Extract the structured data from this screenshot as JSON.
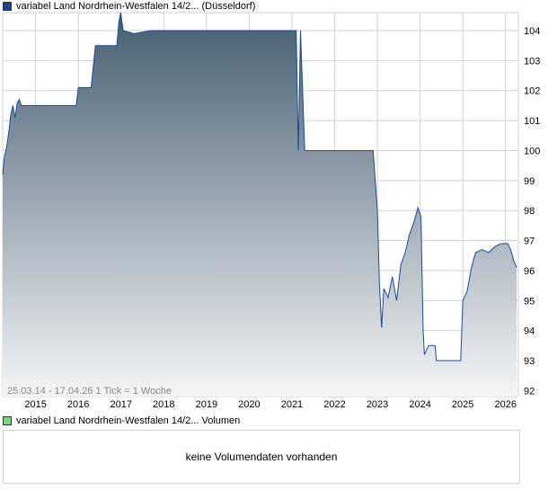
{
  "legend": {
    "price_label": "variabel Land Nordrhein-Westfalen 14/2... (Düsseldorf)",
    "volume_label": "variabel Land Nordrhein-Westfalen 14/2... Volumen"
  },
  "colors": {
    "price_swatch": "#1c3f8f",
    "volume_swatch": "#7fd67f",
    "line": "#1a4aa0",
    "fill_top": "#465e70",
    "fill_bottom": "#f4f5f7",
    "grid": "#d2d2d2"
  },
  "chart_info": {
    "range": "25.03.14 - 17.04.26",
    "tick": "1 Tick = 1 Woche"
  },
  "volume": {
    "empty_text": "keine Volumendaten vorhanden"
  },
  "chart_data": {
    "type": "area",
    "title": "",
    "xlabel": "",
    "ylabel": "",
    "ylim": [
      91.8,
      104.6
    ],
    "xlim": [
      2014.23,
      2026.3
    ],
    "x_ticks": [
      "2015",
      "2016",
      "2017",
      "2018",
      "2019",
      "2020",
      "2021",
      "2022",
      "2023",
      "2024",
      "2025",
      "2026"
    ],
    "y_ticks": [
      "92",
      "93",
      "94",
      "95",
      "96",
      "97",
      "98",
      "99",
      "100",
      "101",
      "102",
      "103",
      "104"
    ],
    "grid": true,
    "y_axis_side": "right",
    "legend_position": "top-left",
    "series": [
      {
        "values": [
          [
            2014.23,
            99.2
          ],
          [
            2014.27,
            99.8
          ],
          [
            2014.32,
            100.1
          ],
          [
            2014.37,
            100.6
          ],
          [
            2014.42,
            101.2
          ],
          [
            2014.47,
            101.5
          ],
          [
            2014.52,
            101.1
          ],
          [
            2014.57,
            101.6
          ],
          [
            2014.62,
            101.7
          ],
          [
            2014.67,
            101.5
          ],
          [
            2014.9,
            101.5
          ],
          [
            2015.1,
            101.5
          ],
          [
            2015.2,
            101.5
          ],
          [
            2015.6,
            101.5
          ],
          [
            2015.95,
            101.5
          ],
          [
            2016.0,
            102.1
          ],
          [
            2016.3,
            102.1
          ],
          [
            2016.4,
            103.5
          ],
          [
            2016.9,
            103.5
          ],
          [
            2016.95,
            104.3
          ],
          [
            2016.99,
            104.8
          ],
          [
            2017.05,
            104.0
          ],
          [
            2017.3,
            103.9
          ],
          [
            2017.7,
            104.0
          ],
          [
            2018.5,
            104.0
          ],
          [
            2019.5,
            104.0
          ],
          [
            2020.5,
            104.0
          ],
          [
            2021.1,
            104.0
          ],
          [
            2021.15,
            100.0
          ],
          [
            2021.2,
            104.0
          ],
          [
            2021.3,
            100.0
          ],
          [
            2022.0,
            100.0
          ],
          [
            2022.9,
            100.0
          ],
          [
            2023.0,
            98.0
          ],
          [
            2023.05,
            95.5
          ],
          [
            2023.1,
            94.1
          ],
          [
            2023.15,
            95.4
          ],
          [
            2023.25,
            95.1
          ],
          [
            2023.35,
            95.8
          ],
          [
            2023.45,
            95.0
          ],
          [
            2023.55,
            96.2
          ],
          [
            2023.65,
            96.6
          ],
          [
            2023.75,
            97.2
          ],
          [
            2023.85,
            97.6
          ],
          [
            2023.95,
            98.1
          ],
          [
            2024.02,
            97.8
          ],
          [
            2024.07,
            94.0
          ],
          [
            2024.1,
            93.2
          ],
          [
            2024.2,
            93.5
          ],
          [
            2024.35,
            93.5
          ],
          [
            2024.38,
            93.0
          ],
          [
            2024.6,
            93.0
          ],
          [
            2024.95,
            93.0
          ],
          [
            2025.0,
            95.0
          ],
          [
            2025.1,
            95.3
          ],
          [
            2025.2,
            96.1
          ],
          [
            2025.3,
            96.6
          ],
          [
            2025.45,
            96.7
          ],
          [
            2025.6,
            96.6
          ],
          [
            2025.75,
            96.8
          ],
          [
            2025.9,
            96.9
          ],
          [
            2026.05,
            96.9
          ],
          [
            2026.12,
            96.7
          ],
          [
            2026.2,
            96.3
          ],
          [
            2026.26,
            96.1
          ]
        ]
      }
    ]
  }
}
